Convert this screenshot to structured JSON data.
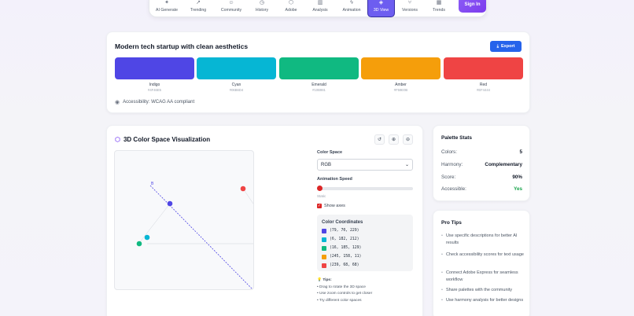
{
  "nav": {
    "items": [
      {
        "label": "AI Generate",
        "icon": "sparkle-icon"
      },
      {
        "label": "Trending",
        "icon": "trend-icon"
      },
      {
        "label": "Community",
        "icon": "users-icon"
      },
      {
        "label": "History",
        "icon": "clock-icon"
      },
      {
        "label": "Adobe",
        "icon": "adobe-icon"
      },
      {
        "label": "Analysis",
        "icon": "chart-icon"
      },
      {
        "label": "Animation",
        "icon": "bolt-icon"
      },
      {
        "label": "3D View",
        "icon": "cube-icon",
        "active": true
      },
      {
        "label": "Versions",
        "icon": "branch-icon"
      },
      {
        "label": "Trends",
        "icon": "calendar-icon"
      }
    ],
    "signin": "Sign In"
  },
  "palette": {
    "title": "Modern tech startup with clean aesthetics",
    "export_label": "Export",
    "colors": [
      {
        "name": "Indigo",
        "hex": "#4F46E5"
      },
      {
        "name": "Cyan",
        "hex": "#06B6D4"
      },
      {
        "name": "Emerald",
        "hex": "#10B981"
      },
      {
        "name": "Amber",
        "hex": "#F59E0B"
      },
      {
        "name": "Red",
        "hex": "#EF4444"
      }
    ],
    "accessibility": "Accessibility: WCAG AA compliant"
  },
  "viz": {
    "title": "3D Color Space Visualization",
    "axis_label": "B",
    "color_space_label": "Color Space",
    "color_space_value": "RGB",
    "speed_label": "Animation Speed",
    "speed_value_text": "Static",
    "speed_fraction": 0,
    "show_axes_label": "Show axes",
    "coords_title": "Color Coordinates",
    "coords": [
      {
        "text": "(79, 70, 229)",
        "color": "#4F46E5"
      },
      {
        "text": "(6, 182, 212)",
        "color": "#06B6D4"
      },
      {
        "text": "(16, 185, 129)",
        "color": "#10B981"
      },
      {
        "text": "(245, 158, 11)",
        "color": "#F59E0B"
      },
      {
        "text": "(239, 68, 68)",
        "color": "#EF4444"
      }
    ],
    "tips_title": "Tips:",
    "tips": [
      "• Drag to rotate the 3D space",
      "• Use zoom controls to get closer",
      "• Try different color spaces"
    ]
  },
  "stats": {
    "title": "Palette Stats",
    "rows": [
      {
        "label": "Colors:",
        "value": "5"
      },
      {
        "label": "Harmony:",
        "value": "Complementary"
      },
      {
        "label": "Score:",
        "value": "90%"
      },
      {
        "label": "Accessible:",
        "value": "Yes"
      }
    ]
  },
  "pro_tips": {
    "title": "Pro Tips",
    "items": [
      "Use specific descriptions for better AI results",
      "Check accessibility scores for text usage",
      "Connect Adobe Express for seamless workflow",
      "Share palettes with the community",
      "Use harmony analysis for better designs"
    ]
  }
}
